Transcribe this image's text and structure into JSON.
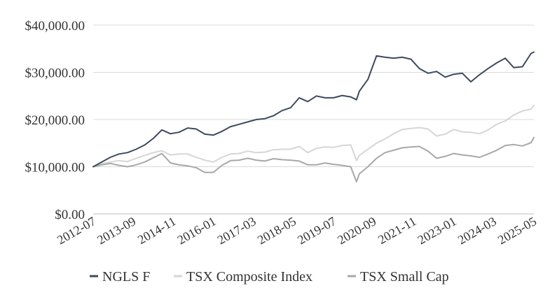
{
  "chart_data": {
    "type": "line",
    "title": "",
    "xlabel": "",
    "ylabel": "",
    "ylim": [
      0,
      40000
    ],
    "yticks": [
      0,
      10000,
      20000,
      30000,
      40000
    ],
    "ytick_labels": [
      "$0.00",
      "$10,000.00",
      "$20,000.00",
      "$30,000.00",
      "$40,000.00"
    ],
    "xtick_labels": [
      "2012-07",
      "2013-09",
      "2014-11",
      "2016-01",
      "2017-03",
      "2018-05",
      "2019-07",
      "2020-09",
      "2021-11",
      "2023-01",
      "2024-03",
      "2025-05"
    ],
    "grid": true,
    "legend_position": "bottom",
    "x": [
      "2012-07",
      "2012-10",
      "2013-01",
      "2013-04",
      "2013-07",
      "2013-10",
      "2014-01",
      "2014-04",
      "2014-07",
      "2014-10",
      "2015-01",
      "2015-04",
      "2015-07",
      "2015-10",
      "2016-01",
      "2016-04",
      "2016-07",
      "2016-10",
      "2017-01",
      "2017-04",
      "2017-07",
      "2017-10",
      "2018-01",
      "2018-04",
      "2018-07",
      "2018-10",
      "2019-01",
      "2019-04",
      "2019-07",
      "2019-10",
      "2020-01",
      "2020-03",
      "2020-04",
      "2020-07",
      "2020-10",
      "2021-01",
      "2021-04",
      "2021-07",
      "2021-10",
      "2022-01",
      "2022-04",
      "2022-07",
      "2022-10",
      "2023-01",
      "2023-04",
      "2023-07",
      "2023-10",
      "2024-01",
      "2024-04",
      "2024-07",
      "2024-10",
      "2025-01",
      "2025-04",
      "2025-05"
    ],
    "series": [
      {
        "name": "NGLS F",
        "color": "#3e4a5e",
        "values": [
          10000,
          11000,
          12000,
          12700,
          13000,
          13700,
          14600,
          16000,
          17800,
          17000,
          17300,
          18200,
          18000,
          16900,
          16700,
          17500,
          18500,
          19000,
          19500,
          20000,
          20200,
          20800,
          21900,
          22500,
          24600,
          23800,
          25000,
          24600,
          24600,
          25100,
          24800,
          24200,
          26000,
          28500,
          33500,
          33200,
          33000,
          33200,
          32800,
          30800,
          29800,
          30200,
          29000,
          29600,
          29800,
          28000,
          29500,
          30800,
          32000,
          33000,
          31000,
          31200,
          34000,
          34300
        ]
      },
      {
        "name": "TSX Composite Index",
        "color": "#d6d6d6",
        "values": [
          10000,
          10600,
          11000,
          11300,
          11100,
          11800,
          12400,
          13000,
          13400,
          12500,
          12700,
          12700,
          12000,
          11400,
          11000,
          12000,
          12700,
          12800,
          13300,
          13000,
          13100,
          13600,
          13700,
          13700,
          14300,
          13000,
          13900,
          14200,
          14100,
          14500,
          14600,
          11300,
          12400,
          13700,
          15000,
          15900,
          17000,
          17900,
          18100,
          18300,
          18000,
          16500,
          16900,
          17900,
          17400,
          17300,
          17000,
          17800,
          19000,
          19700,
          21000,
          21800,
          22200,
          23000
        ]
      },
      {
        "name": "TSX Small Cap",
        "color": "#a8a8a8",
        "values": [
          10000,
          10400,
          10700,
          10300,
          10000,
          10400,
          11000,
          11900,
          12800,
          10800,
          10400,
          10200,
          9800,
          8800,
          8800,
          10300,
          11300,
          11400,
          11800,
          11400,
          11200,
          11700,
          11500,
          11400,
          11200,
          10400,
          10400,
          10800,
          10500,
          10300,
          10000,
          6800,
          8500,
          10000,
          11800,
          13000,
          13500,
          14000,
          14200,
          14300,
          13300,
          11800,
          12200,
          12800,
          12500,
          12300,
          12000,
          12700,
          13500,
          14500,
          14700,
          14400,
          15100,
          16200
        ]
      }
    ]
  }
}
